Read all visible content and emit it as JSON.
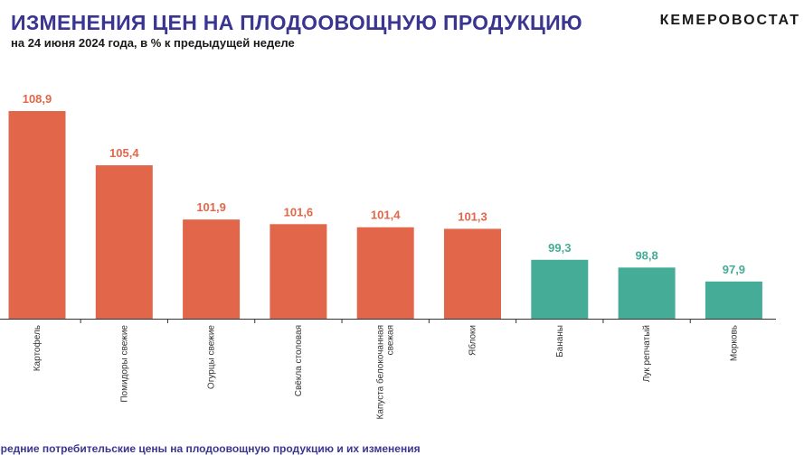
{
  "header": {
    "title": "ИЗМЕНЕНИЯ ЦЕН НА ПЛОДООВОЩНУЮ ПРОДУКЦИЮ",
    "subtitle": "на 24 июня 2024 года, в % к предыдущей неделе",
    "brand": "КЕМЕРОВОСТАТ"
  },
  "footer": {
    "text": "Средние потребительские цены на плодоовощную продукцию и их изменения"
  },
  "colors": {
    "increase": "#e2674a",
    "decrease": "#45ac98",
    "axis": "#333333"
  },
  "chart_data": {
    "type": "bar",
    "categories": [
      "Картофель",
      "Помидоры свежие",
      "Огурцы свежие",
      "Свёкла столовая",
      "Капуста белокочанная свежая",
      "Яблоки",
      "Бананы",
      "Лук репчатый",
      "Морковь"
    ],
    "category_lines": [
      [
        "Картофель"
      ],
      [
        "Помидоры свежие"
      ],
      [
        "Огурцы свежие"
      ],
      [
        "Свёкла столовая"
      ],
      [
        "Капуста белокочанная",
        "свежая"
      ],
      [
        "Яблоки"
      ],
      [
        "Бананы"
      ],
      [
        "Лук репчатый"
      ],
      [
        "Морковь"
      ]
    ],
    "values": [
      108.9,
      105.4,
      101.9,
      101.6,
      101.4,
      101.3,
      99.3,
      98.8,
      97.9
    ],
    "labels": [
      "108,9",
      "105,4",
      "101,9",
      "101,6",
      "101,4",
      "101,3",
      "99,3",
      "98,8",
      "97,9"
    ],
    "ylim": [
      95.5,
      108.9
    ],
    "grid": false,
    "legend": "none"
  }
}
